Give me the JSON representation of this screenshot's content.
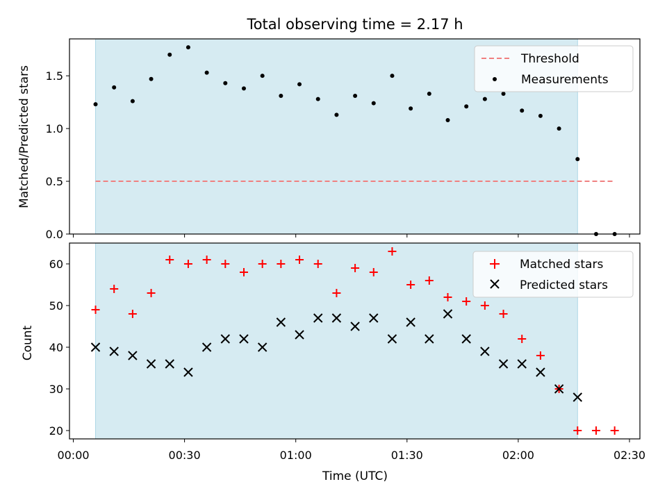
{
  "chart_data": [
    {
      "type": "scatter",
      "title": "Total observing time = 2.17 h",
      "ylabel": "Matched/Predicted stars",
      "xlim": [
        "00:00",
        "02:30"
      ],
      "ylim": [
        0.0,
        1.85
      ],
      "yticks": [
        "0.0",
        "0.5",
        "1.0",
        "1.5"
      ],
      "yticks_values": [
        0.0,
        0.5,
        1.0,
        1.5
      ],
      "shaded_span": [
        "00:06",
        "02:16"
      ],
      "shade_color": "#add8e6",
      "legend": "top-right",
      "threshold": {
        "name": "Threshold",
        "y": 0.5,
        "x": [
          "00:06",
          "02:26"
        ],
        "color": "#f08080"
      },
      "series": [
        {
          "name": "Measurements",
          "color": "#000000",
          "x": [
            "00:06",
            "00:11",
            "00:16",
            "00:21",
            "00:26",
            "00:31",
            "00:36",
            "00:41",
            "00:46",
            "00:51",
            "00:56",
            "01:01",
            "01:06",
            "01:11",
            "01:16",
            "01:21",
            "01:26",
            "01:31",
            "01:36",
            "01:41",
            "01:46",
            "01:51",
            "01:56",
            "02:01",
            "02:06",
            "02:11",
            "02:16",
            "02:21",
            "02:26"
          ],
          "y": [
            1.23,
            1.39,
            1.26,
            1.47,
            1.7,
            1.77,
            1.53,
            1.43,
            1.38,
            1.5,
            1.31,
            1.42,
            1.28,
            1.13,
            1.31,
            1.24,
            1.5,
            1.19,
            1.33,
            1.08,
            1.21,
            1.28,
            1.33,
            1.17,
            1.12,
            1.0,
            0.71,
            0.0,
            0.0
          ]
        }
      ]
    },
    {
      "type": "scatter",
      "xlabel": "Time (UTC)",
      "ylabel": "Count",
      "xlim": [
        "00:00",
        "02:30"
      ],
      "ylim": [
        18,
        65
      ],
      "xticks": [
        "00:00",
        "00:30",
        "01:00",
        "01:30",
        "02:00",
        "02:30"
      ],
      "yticks": [
        "20",
        "30",
        "40",
        "50",
        "60"
      ],
      "yticks_values": [
        20,
        30,
        40,
        50,
        60
      ],
      "shaded_span": [
        "00:06",
        "02:16"
      ],
      "shade_color": "#add8e6",
      "legend": "top-right",
      "series": [
        {
          "name": "Matched stars",
          "marker": "plus",
          "color": "#ff0000",
          "x": [
            "00:06",
            "00:11",
            "00:16",
            "00:21",
            "00:26",
            "00:31",
            "00:36",
            "00:41",
            "00:46",
            "00:51",
            "00:56",
            "01:01",
            "01:06",
            "01:11",
            "01:16",
            "01:21",
            "01:26",
            "01:31",
            "01:36",
            "01:41",
            "01:46",
            "01:51",
            "01:56",
            "02:01",
            "02:06",
            "02:11",
            "02:16",
            "02:21",
            "02:26"
          ],
          "y": [
            49,
            54,
            48,
            53,
            61,
            60,
            61,
            60,
            58,
            60,
            60,
            61,
            60,
            53,
            59,
            58,
            63,
            55,
            56,
            52,
            51,
            50,
            48,
            42,
            38,
            30,
            20,
            20,
            20
          ]
        },
        {
          "name": "Predicted stars",
          "marker": "x",
          "color": "#000000",
          "x": [
            "00:06",
            "00:11",
            "00:16",
            "00:21",
            "00:26",
            "00:31",
            "00:36",
            "00:41",
            "00:46",
            "00:51",
            "00:56",
            "01:01",
            "01:06",
            "01:11",
            "01:16",
            "01:21",
            "01:26",
            "01:31",
            "01:36",
            "01:41",
            "01:46",
            "01:51",
            "01:56",
            "02:01",
            "02:06",
            "02:11",
            "02:16"
          ],
          "y": [
            40,
            39,
            38,
            36,
            36,
            34,
            40,
            42,
            42,
            40,
            46,
            43,
            47,
            47,
            45,
            47,
            42,
            46,
            42,
            48,
            42,
            39,
            36,
            36,
            34,
            30,
            28
          ]
        }
      ]
    }
  ]
}
